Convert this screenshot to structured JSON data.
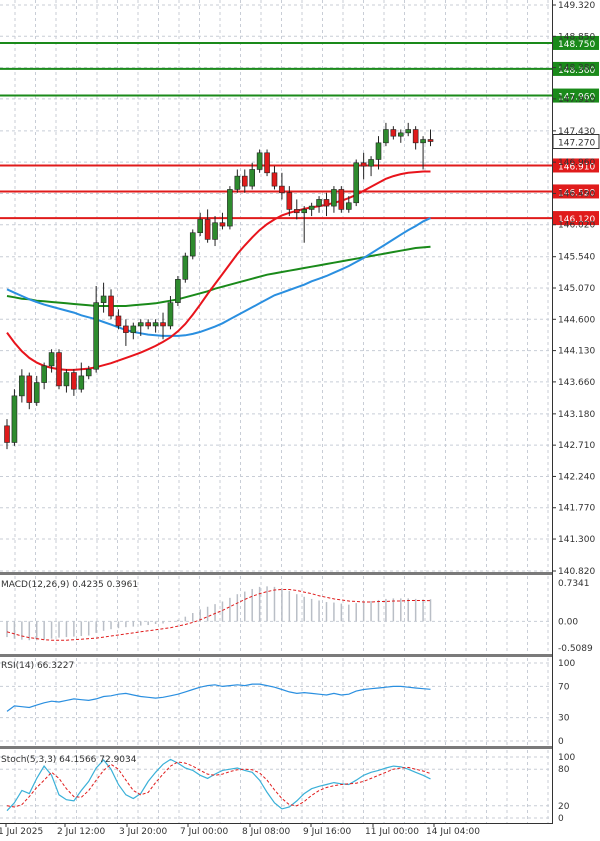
{
  "chart_data": {
    "type": "candlestick",
    "instrument_note": "",
    "colors": {
      "bull": "#2e8b2e",
      "bear": "#e01b1b",
      "sma_fast": "#e8141c",
      "sma_mid": "#2a8fe0",
      "sma_slow": "#1a8a1a",
      "resistance": "#1a8a1a",
      "support": "#e01b1b",
      "grid": "#c8cdd6",
      "macd_hist": "#b9bec6",
      "macd_signal": "#e01b1b",
      "rsi": "#2a8fe0",
      "stoch_k": "#3ab0d8",
      "stoch_d": "#e01b1b"
    },
    "price_axis": {
      "range": [
        140.82,
        149.32
      ],
      "ticks": [
        "149.320",
        "148.850",
        "148.380",
        "147.910",
        "147.430",
        "146.960",
        "146.490",
        "146.020",
        "145.540",
        "145.070",
        "144.600",
        "144.130",
        "143.660",
        "143.180",
        "142.710",
        "142.240",
        "141.770",
        "141.300",
        "140.820"
      ],
      "tick_values": [
        149.32,
        148.85,
        148.38,
        147.91,
        147.43,
        146.96,
        146.49,
        146.02,
        145.54,
        145.07,
        144.6,
        144.13,
        143.66,
        143.18,
        142.71,
        142.24,
        141.77,
        141.3,
        140.82
      ]
    },
    "levels": [
      {
        "kind": "resistance",
        "value": 148.75,
        "label": "148.750"
      },
      {
        "kind": "resistance",
        "value": 148.36,
        "label": "148.360"
      },
      {
        "kind": "resistance",
        "value": 147.96,
        "label": "147.960"
      },
      {
        "kind": "support",
        "value": 146.91,
        "label": "146.910"
      },
      {
        "kind": "support",
        "value": 146.52,
        "label": "146.520"
      },
      {
        "kind": "support",
        "value": 146.12,
        "label": "146.120"
      }
    ],
    "current_price": {
      "value": 147.27,
      "label": "147.270"
    },
    "x_labels": [
      "1 Jul 2025",
      "2 Jul 12:00",
      "3 Jul 20:00",
      "7 Jul 00:00",
      "8 Jul 08:00",
      "9 Jul 16:00",
      "11 Jul 00:00",
      "14 Jul 04:00"
    ],
    "candles": [
      {
        "o": 143.0,
        "h": 143.1,
        "l": 142.65,
        "c": 142.75
      },
      {
        "o": 142.75,
        "h": 143.55,
        "l": 142.7,
        "c": 143.45
      },
      {
        "o": 143.45,
        "h": 143.85,
        "l": 143.35,
        "c": 143.75
      },
      {
        "o": 143.75,
        "h": 143.8,
        "l": 143.25,
        "c": 143.35
      },
      {
        "o": 143.35,
        "h": 143.75,
        "l": 143.3,
        "c": 143.65
      },
      {
        "o": 143.65,
        "h": 143.95,
        "l": 143.55,
        "c": 143.9
      },
      {
        "o": 143.9,
        "h": 144.15,
        "l": 143.8,
        "c": 144.1
      },
      {
        "o": 144.1,
        "h": 144.15,
        "l": 143.55,
        "c": 143.6
      },
      {
        "o": 143.6,
        "h": 143.85,
        "l": 143.5,
        "c": 143.8
      },
      {
        "o": 143.8,
        "h": 143.85,
        "l": 143.45,
        "c": 143.55
      },
      {
        "o": 143.55,
        "h": 143.95,
        "l": 143.5,
        "c": 143.75
      },
      {
        "o": 143.75,
        "h": 143.9,
        "l": 143.7,
        "c": 143.85
      },
      {
        "o": 143.85,
        "h": 145.1,
        "l": 143.8,
        "c": 144.85
      },
      {
        "o": 144.85,
        "h": 145.15,
        "l": 144.7,
        "c": 144.95
      },
      {
        "o": 144.95,
        "h": 145.05,
        "l": 144.6,
        "c": 144.65
      },
      {
        "o": 144.65,
        "h": 144.75,
        "l": 144.45,
        "c": 144.5
      },
      {
        "o": 144.5,
        "h": 144.6,
        "l": 144.2,
        "c": 144.4
      },
      {
        "o": 144.4,
        "h": 144.55,
        "l": 144.3,
        "c": 144.5
      },
      {
        "o": 144.5,
        "h": 144.6,
        "l": 144.35,
        "c": 144.55
      },
      {
        "o": 144.55,
        "h": 144.6,
        "l": 144.45,
        "c": 144.5
      },
      {
        "o": 144.5,
        "h": 144.6,
        "l": 144.4,
        "c": 144.55
      },
      {
        "o": 144.55,
        "h": 144.7,
        "l": 144.3,
        "c": 144.5
      },
      {
        "o": 144.5,
        "h": 144.95,
        "l": 144.45,
        "c": 144.85
      },
      {
        "o": 144.85,
        "h": 145.25,
        "l": 144.8,
        "c": 145.2
      },
      {
        "o": 145.2,
        "h": 145.6,
        "l": 145.15,
        "c": 145.55
      },
      {
        "o": 145.55,
        "h": 145.95,
        "l": 145.5,
        "c": 145.9
      },
      {
        "o": 145.9,
        "h": 146.2,
        "l": 145.85,
        "c": 146.1
      },
      {
        "o": 146.1,
        "h": 146.25,
        "l": 145.75,
        "c": 145.8
      },
      {
        "o": 145.8,
        "h": 146.15,
        "l": 145.7,
        "c": 146.05
      },
      {
        "o": 146.05,
        "h": 146.2,
        "l": 145.95,
        "c": 146.0
      },
      {
        "o": 146.0,
        "h": 146.6,
        "l": 145.95,
        "c": 146.55
      },
      {
        "o": 146.55,
        "h": 146.85,
        "l": 146.5,
        "c": 146.75
      },
      {
        "o": 146.75,
        "h": 146.85,
        "l": 146.5,
        "c": 146.6
      },
      {
        "o": 146.6,
        "h": 146.95,
        "l": 146.55,
        "c": 146.85
      },
      {
        "o": 146.85,
        "h": 147.15,
        "l": 146.8,
        "c": 147.1
      },
      {
        "o": 147.1,
        "h": 147.15,
        "l": 146.75,
        "c": 146.8
      },
      {
        "o": 146.8,
        "h": 146.9,
        "l": 146.55,
        "c": 146.6
      },
      {
        "o": 146.6,
        "h": 146.8,
        "l": 146.4,
        "c": 146.5
      },
      {
        "o": 146.5,
        "h": 146.6,
        "l": 146.15,
        "c": 146.25
      },
      {
        "o": 146.25,
        "h": 146.4,
        "l": 146.1,
        "c": 146.2
      },
      {
        "o": 146.2,
        "h": 146.3,
        "l": 145.75,
        "c": 146.25
      },
      {
        "o": 146.25,
        "h": 146.35,
        "l": 146.15,
        "c": 146.3
      },
      {
        "o": 146.3,
        "h": 146.45,
        "l": 146.2,
        "c": 146.4
      },
      {
        "o": 146.4,
        "h": 146.5,
        "l": 146.15,
        "c": 146.3
      },
      {
        "o": 146.3,
        "h": 146.6,
        "l": 146.2,
        "c": 146.55
      },
      {
        "o": 146.55,
        "h": 146.6,
        "l": 146.2,
        "c": 146.25
      },
      {
        "o": 146.25,
        "h": 146.45,
        "l": 146.2,
        "c": 146.35
      },
      {
        "o": 146.35,
        "h": 147.0,
        "l": 146.3,
        "c": 146.95
      },
      {
        "o": 146.95,
        "h": 147.1,
        "l": 146.7,
        "c": 146.9
      },
      {
        "o": 146.9,
        "h": 147.05,
        "l": 146.75,
        "c": 147.0
      },
      {
        "o": 147.0,
        "h": 147.35,
        "l": 146.85,
        "c": 147.25
      },
      {
        "o": 147.25,
        "h": 147.55,
        "l": 147.2,
        "c": 147.45
      },
      {
        "o": 147.45,
        "h": 147.5,
        "l": 147.3,
        "c": 147.35
      },
      {
        "o": 147.35,
        "h": 147.45,
        "l": 147.25,
        "c": 147.4
      },
      {
        "o": 147.4,
        "h": 147.55,
        "l": 147.35,
        "c": 147.45
      },
      {
        "o": 147.45,
        "h": 147.5,
        "l": 147.15,
        "c": 147.25
      },
      {
        "o": 147.25,
        "h": 147.35,
        "l": 146.85,
        "c": 147.3
      },
      {
        "o": 147.3,
        "h": 147.45,
        "l": 147.2,
        "c": 147.27
      }
    ],
    "sma_fast": {
      "name": "SMA fast",
      "values": [
        144.4,
        144.25,
        144.12,
        144.02,
        143.95,
        143.9,
        143.87,
        143.85,
        143.84,
        143.84,
        143.85,
        143.86,
        143.88,
        143.91,
        143.94,
        143.98,
        144.02,
        144.06,
        144.1,
        144.15,
        144.2,
        144.26,
        144.33,
        144.42,
        144.53,
        144.67,
        144.82,
        144.98,
        145.13,
        145.28,
        145.43,
        145.58,
        145.71,
        145.83,
        145.94,
        146.03,
        146.1,
        146.16,
        146.2,
        146.23,
        146.26,
        146.28,
        146.3,
        146.32,
        146.35,
        146.38,
        146.42,
        146.47,
        146.53,
        146.59,
        146.65,
        146.71,
        146.75,
        146.78,
        146.8,
        146.81,
        146.82,
        146.82
      ]
    },
    "sma_mid": {
      "name": "SMA mid",
      "values": [
        145.05,
        145.0,
        144.95,
        144.9,
        144.86,
        144.82,
        144.79,
        144.76,
        144.73,
        144.7,
        144.66,
        144.63,
        144.6,
        144.56,
        144.52,
        144.48,
        144.44,
        144.41,
        144.39,
        144.37,
        144.36,
        144.35,
        144.35,
        144.35,
        144.36,
        144.38,
        144.41,
        144.45,
        144.49,
        144.54,
        144.6,
        144.66,
        144.72,
        144.78,
        144.84,
        144.9,
        144.96,
        145.0,
        145.04,
        145.08,
        145.12,
        145.17,
        145.21,
        145.25,
        145.3,
        145.35,
        145.4,
        145.46,
        145.52,
        145.59,
        145.66,
        145.73,
        145.8,
        145.87,
        145.94,
        146.0,
        146.07,
        146.12
      ]
    },
    "sma_slow": {
      "name": "SMA slow",
      "values": [
        144.95,
        144.93,
        144.91,
        144.9,
        144.88,
        144.87,
        144.86,
        144.85,
        144.84,
        144.83,
        144.82,
        144.81,
        144.8,
        144.8,
        144.8,
        144.8,
        144.8,
        144.81,
        144.82,
        144.83,
        144.84,
        144.86,
        144.88,
        144.9,
        144.93,
        144.96,
        144.99,
        145.02,
        145.06,
        145.09,
        145.12,
        145.15,
        145.18,
        145.21,
        145.24,
        145.27,
        145.29,
        145.31,
        145.33,
        145.35,
        145.37,
        145.39,
        145.41,
        145.43,
        145.45,
        145.47,
        145.49,
        145.51,
        145.53,
        145.55,
        145.57,
        145.59,
        145.61,
        145.63,
        145.65,
        145.67,
        145.68,
        145.69
      ]
    },
    "macd": {
      "label": "MACD(12,26,9) 0.4235 0.3961",
      "axis_labels": [
        "0.7341",
        "0.00",
        "-0.5089"
      ],
      "range": [
        -0.5089,
        0.7341
      ],
      "hist": [
        -0.3,
        -0.33,
        -0.35,
        -0.36,
        -0.36,
        -0.35,
        -0.33,
        -0.31,
        -0.3,
        -0.29,
        -0.28,
        -0.27,
        -0.22,
        -0.18,
        -0.15,
        -0.13,
        -0.11,
        -0.1,
        -0.08,
        -0.07,
        -0.05,
        -0.04,
        -0.01,
        0.03,
        0.09,
        0.16,
        0.23,
        0.28,
        0.33,
        0.38,
        0.45,
        0.52,
        0.57,
        0.62,
        0.66,
        0.67,
        0.66,
        0.63,
        0.58,
        0.52,
        0.47,
        0.43,
        0.4,
        0.37,
        0.36,
        0.34,
        0.32,
        0.35,
        0.37,
        0.39,
        0.41,
        0.43,
        0.44,
        0.44,
        0.44,
        0.43,
        0.42,
        0.4235
      ],
      "signal": [
        -0.2,
        -0.24,
        -0.28,
        -0.31,
        -0.33,
        -0.35,
        -0.36,
        -0.36,
        -0.36,
        -0.35,
        -0.34,
        -0.33,
        -0.32,
        -0.3,
        -0.28,
        -0.26,
        -0.24,
        -0.22,
        -0.2,
        -0.18,
        -0.16,
        -0.14,
        -0.12,
        -0.09,
        -0.06,
        -0.02,
        0.03,
        0.09,
        0.15,
        0.21,
        0.28,
        0.35,
        0.42,
        0.48,
        0.53,
        0.57,
        0.6,
        0.61,
        0.61,
        0.59,
        0.56,
        0.53,
        0.49,
        0.46,
        0.43,
        0.41,
        0.39,
        0.38,
        0.37,
        0.37,
        0.38,
        0.38,
        0.39,
        0.39,
        0.4,
        0.4,
        0.4,
        0.3961
      ]
    },
    "rsi": {
      "label": "RSI(14) 66.3227",
      "axis_labels": [
        "100",
        "70",
        "30",
        "0"
      ],
      "range": [
        0,
        100
      ],
      "values": [
        38,
        45,
        44,
        43,
        46,
        49,
        51,
        50,
        52,
        54,
        53,
        52,
        54,
        57,
        58,
        60,
        61,
        59,
        57,
        56,
        55,
        56,
        58,
        60,
        63,
        66,
        69,
        71,
        72,
        70,
        71,
        72,
        71,
        73,
        73,
        71,
        69,
        66,
        63,
        61,
        62,
        61,
        60,
        59,
        61,
        59,
        60,
        64,
        66,
        67,
        68,
        69,
        70,
        70,
        69,
        68,
        67,
        66.3227
      ]
    },
    "stoch": {
      "label": "Stoch(5,3,3) 64.1566 72.9034",
      "axis_labels": [
        "100",
        "80",
        "20",
        "0"
      ],
      "range": [
        0,
        100
      ],
      "k": [
        12,
        25,
        45,
        40,
        65,
        85,
        70,
        38,
        30,
        28,
        45,
        60,
        82,
        95,
        80,
        55,
        38,
        32,
        40,
        60,
        75,
        88,
        96,
        90,
        82,
        78,
        70,
        65,
        72,
        78,
        80,
        82,
        78,
        75,
        62,
        42,
        25,
        15,
        18,
        28,
        40,
        48,
        52,
        55,
        58,
        56,
        55,
        62,
        70,
        75,
        78,
        82,
        85,
        84,
        80,
        75,
        70,
        64.1566
      ],
      "d": [
        20,
        18,
        22,
        35,
        50,
        62,
        75,
        65,
        48,
        35,
        34,
        45,
        62,
        78,
        88,
        80,
        62,
        45,
        38,
        42,
        58,
        72,
        85,
        92,
        90,
        85,
        78,
        72,
        70,
        72,
        76,
        79,
        80,
        79,
        74,
        62,
        46,
        32,
        22,
        20,
        27,
        37,
        45,
        50,
        53,
        55,
        56,
        57,
        60,
        65,
        70,
        75,
        80,
        82,
        83,
        80,
        77,
        72.9034
      ]
    }
  }
}
